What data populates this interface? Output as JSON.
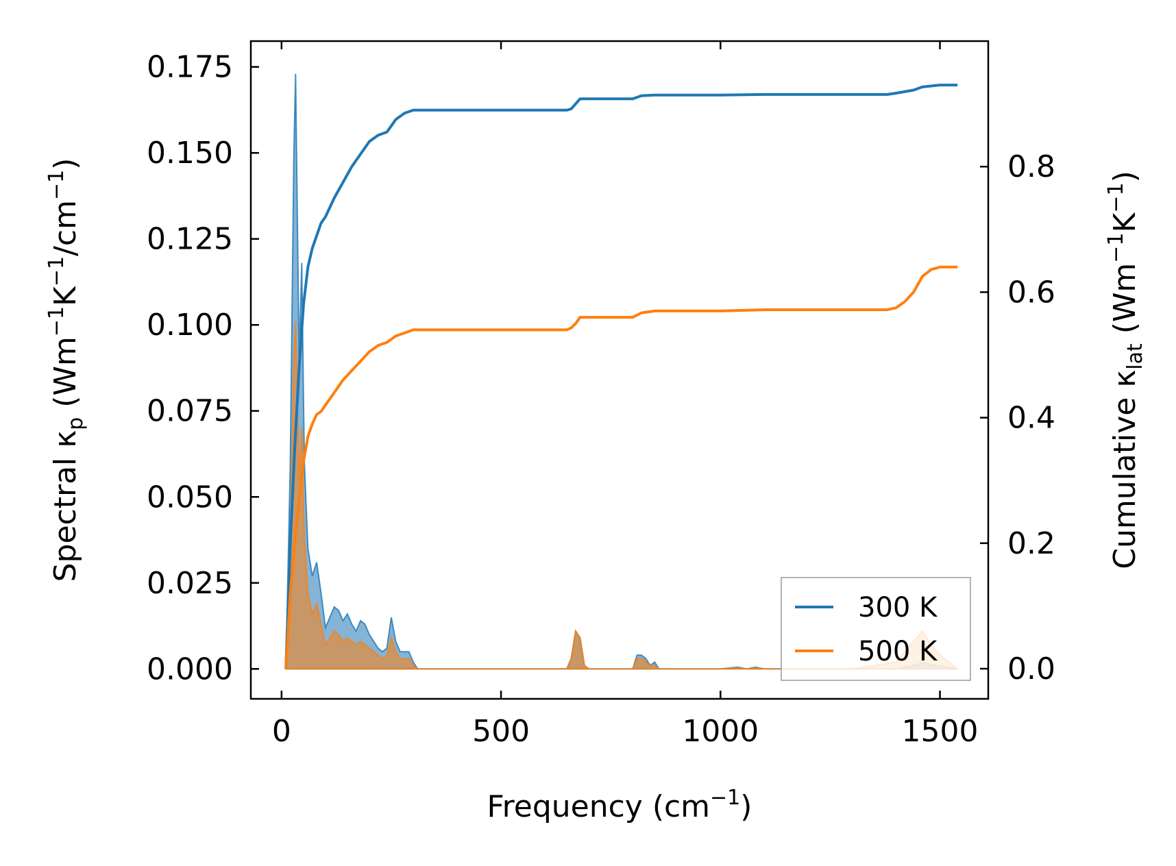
{
  "chart_data": {
    "type": "line",
    "x_axis": {
      "label_base": "Frequency (cm",
      "label_sup": "−1",
      "label_tail": ")",
      "range": [
        -70,
        1610
      ],
      "ticks": [
        0,
        500,
        1000,
        1500
      ],
      "tick_labels": [
        "0",
        "500",
        "1000",
        "1500"
      ]
    },
    "y_left": {
      "label_pre": "Spectral κ",
      "label_sub": "p",
      "label_mid1": " (Wm",
      "label_sup1": "−1",
      "label_mid2": "K",
      "label_sup2": "−1",
      "label_mid3": "/cm",
      "label_sup3": "−1",
      "label_tail": ")",
      "range": [
        -0.0087,
        0.1825
      ],
      "ticks": [
        0,
        0.025,
        0.05,
        0.075,
        0.1,
        0.125,
        0.15,
        0.175
      ],
      "tick_labels": [
        "0.000",
        "0.025",
        "0.050",
        "0.075",
        "0.100",
        "0.125",
        "0.150",
        "0.175"
      ]
    },
    "y_right": {
      "label_pre": "Cumulative κ",
      "label_sub": "lat",
      "label_mid1": " (Wm",
      "label_sup1": "−1",
      "label_mid2": "K",
      "label_sup2": "−1",
      "label_tail": ")",
      "range": [
        -0.048,
        1.0
      ],
      "ticks": [
        0,
        0.2,
        0.4,
        0.6,
        0.8
      ],
      "tick_labels": [
        "0.0",
        "0.2",
        "0.4",
        "0.6",
        "0.8"
      ]
    },
    "legend": {
      "placement": "bottom-right",
      "entries": [
        "300 K",
        "500 K"
      ]
    },
    "colors": {
      "300 K": "#1f77b4",
      "500 K": "#ff7f0e"
    },
    "grid": false,
    "series": [
      {
        "name": "300 K",
        "kind": "cumulative",
        "axis": "right",
        "x": [
          10,
          20,
          30,
          40,
          50,
          60,
          70,
          80,
          90,
          100,
          120,
          140,
          160,
          180,
          200,
          220,
          240,
          250,
          260,
          280,
          300,
          400,
          500,
          600,
          650,
          660,
          670,
          680,
          700,
          800,
          820,
          850,
          900,
          1000,
          1100,
          1200,
          1300,
          1380,
          1400,
          1440,
          1460,
          1500,
          1540
        ],
        "y": [
          0.0,
          0.2,
          0.35,
          0.48,
          0.58,
          0.64,
          0.67,
          0.69,
          0.71,
          0.72,
          0.75,
          0.775,
          0.8,
          0.82,
          0.84,
          0.85,
          0.855,
          0.865,
          0.875,
          0.885,
          0.89,
          0.89,
          0.89,
          0.89,
          0.89,
          0.892,
          0.9,
          0.908,
          0.908,
          0.908,
          0.913,
          0.914,
          0.914,
          0.914,
          0.915,
          0.915,
          0.915,
          0.915,
          0.917,
          0.922,
          0.927,
          0.93,
          0.93
        ]
      },
      {
        "name": "500 K",
        "kind": "cumulative",
        "axis": "right",
        "x": [
          10,
          20,
          30,
          40,
          50,
          60,
          70,
          80,
          90,
          100,
          120,
          140,
          160,
          180,
          200,
          220,
          240,
          250,
          260,
          280,
          300,
          400,
          500,
          600,
          650,
          660,
          670,
          680,
          700,
          800,
          820,
          850,
          900,
          1000,
          1100,
          1200,
          1300,
          1380,
          1400,
          1420,
          1440,
          1460,
          1480,
          1500,
          1540
        ],
        "y": [
          0.0,
          0.12,
          0.2,
          0.27,
          0.33,
          0.37,
          0.39,
          0.405,
          0.41,
          0.42,
          0.44,
          0.46,
          0.475,
          0.49,
          0.505,
          0.515,
          0.52,
          0.525,
          0.53,
          0.535,
          0.54,
          0.54,
          0.54,
          0.54,
          0.54,
          0.543,
          0.55,
          0.56,
          0.56,
          0.56,
          0.567,
          0.57,
          0.57,
          0.57,
          0.572,
          0.572,
          0.572,
          0.572,
          0.575,
          0.585,
          0.6,
          0.625,
          0.636,
          0.64,
          0.64
        ]
      },
      {
        "name": "300 K",
        "kind": "spectral",
        "axis": "left",
        "x": [
          10,
          20,
          28,
          32,
          40,
          46,
          52,
          60,
          70,
          80,
          90,
          100,
          110,
          120,
          130,
          140,
          150,
          160,
          170,
          180,
          190,
          200,
          210,
          220,
          230,
          240,
          250,
          260,
          270,
          280,
          290,
          300,
          310,
          400,
          500,
          600,
          650,
          660,
          670,
          680,
          690,
          700,
          800,
          810,
          820,
          830,
          840,
          850,
          860,
          900,
          1000,
          1040,
          1060,
          1080,
          1100,
          1200,
          1300,
          1400,
          1440,
          1460,
          1480,
          1500,
          1540
        ],
        "y": [
          0.0,
          0.06,
          0.15,
          0.173,
          0.09,
          0.118,
          0.06,
          0.035,
          0.027,
          0.031,
          0.022,
          0.012,
          0.015,
          0.018,
          0.017,
          0.014,
          0.016,
          0.013,
          0.011,
          0.014,
          0.013,
          0.01,
          0.008,
          0.006,
          0.005,
          0.006,
          0.015,
          0.008,
          0.005,
          0.005,
          0.005,
          0.002,
          0.0,
          0.0,
          0.0,
          0.0,
          0.0,
          0.003,
          0.011,
          0.009,
          0.001,
          0.0,
          0.0,
          0.004,
          0.004,
          0.003,
          0.001,
          0.002,
          0.0,
          0.0,
          0.0,
          0.0005,
          0.0,
          0.0005,
          0.0,
          0.0,
          0.0,
          0.0,
          0.001,
          0.0018,
          0.0012,
          0.0008,
          0.0
        ]
      },
      {
        "name": "500 K",
        "kind": "spectral",
        "axis": "left",
        "x": [
          10,
          20,
          28,
          32,
          40,
          46,
          52,
          60,
          70,
          80,
          90,
          100,
          110,
          120,
          130,
          140,
          150,
          160,
          170,
          180,
          190,
          200,
          210,
          220,
          230,
          240,
          250,
          260,
          270,
          280,
          290,
          300,
          310,
          400,
          500,
          600,
          650,
          660,
          670,
          680,
          690,
          700,
          800,
          810,
          820,
          830,
          840,
          850,
          860,
          900,
          1000,
          1040,
          1060,
          1080,
          1100,
          1200,
          1300,
          1400,
          1420,
          1440,
          1460,
          1480,
          1500,
          1540
        ],
        "y": [
          0.0,
          0.035,
          0.09,
          0.101,
          0.055,
          0.07,
          0.038,
          0.022,
          0.016,
          0.019,
          0.013,
          0.007,
          0.009,
          0.011,
          0.01,
          0.008,
          0.009,
          0.008,
          0.007,
          0.008,
          0.007,
          0.006,
          0.005,
          0.004,
          0.003,
          0.004,
          0.009,
          0.005,
          0.003,
          0.003,
          0.003,
          0.001,
          0.0,
          0.0,
          0.0,
          0.0,
          0.0,
          0.003,
          0.011,
          0.009,
          0.001,
          0.0,
          0.0,
          0.003,
          0.003,
          0.002,
          0.001,
          0.001,
          0.0,
          0.0,
          0.0,
          0.0003,
          0.0,
          0.0003,
          0.0,
          0.0,
          0.0,
          0.002,
          0.005,
          0.008,
          0.011,
          0.007,
          0.004,
          0.0
        ]
      }
    ]
  }
}
